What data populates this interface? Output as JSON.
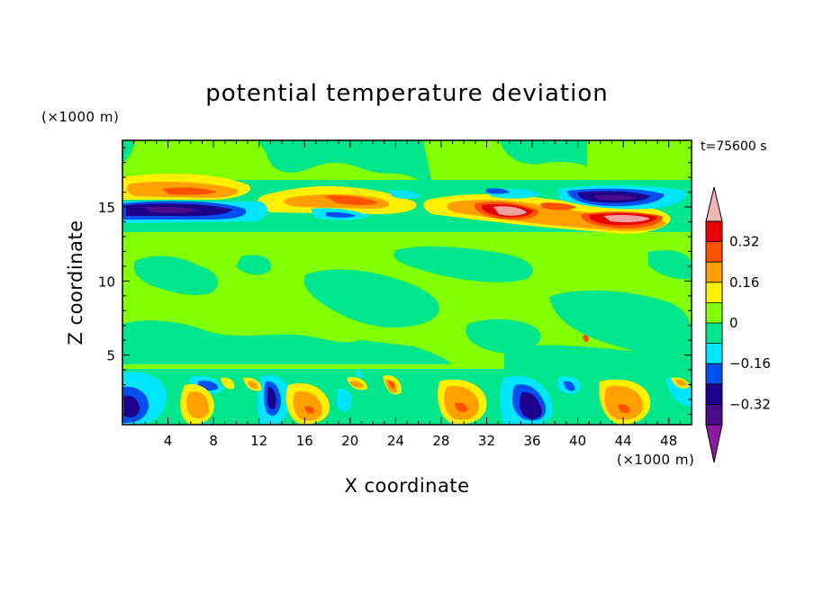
{
  "chart_data": {
    "type": "heatmap",
    "title": "potential temperature deviation",
    "xlabel": "X coordinate",
    "ylabel": "Z coordinate",
    "x_unit_label": "(×1000 m)",
    "y_unit_label": "(×1000 m)",
    "time_label": "t=75600 s",
    "xlim": [
      0,
      50
    ],
    "ylim": [
      0.3,
      19.5
    ],
    "x_ticks": [
      4,
      8,
      12,
      16,
      20,
      24,
      28,
      32,
      36,
      40,
      44,
      48
    ],
    "x_tick_labels": [
      "4",
      "8",
      "12",
      "16",
      "20",
      "24",
      "28",
      "32",
      "36",
      "40",
      "44",
      "48"
    ],
    "y_ticks": [
      5,
      10,
      15
    ],
    "y_tick_labels": [
      "5",
      "10",
      "15"
    ],
    "colorbar": {
      "levels": [
        -0.4,
        -0.32,
        -0.24,
        -0.16,
        -0.08,
        0,
        0.08,
        0.16,
        0.24,
        0.32,
        0.4
      ],
      "labeled_levels": [
        0.32,
        0.16,
        0,
        -0.16,
        -0.32
      ],
      "labels": [
        "0.32",
        "0.16",
        "0",
        "−0.16",
        "−0.32"
      ],
      "colors": [
        "#4b0c8c",
        "#1c008c",
        "#0050f0",
        "#00e6ff",
        "#00e68c",
        "#82ff00",
        "#fff000",
        "#ffa000",
        "#ff5000",
        "#e60000",
        "#f0a0a0",
        "#f5b4b4"
      ],
      "under_color": "#8a1aa0",
      "over_color": "#f5b4b4"
    },
    "background_level": "0 to 0.08",
    "features": [
      {
        "x": 6,
        "z": 16.2,
        "value": 0.2,
        "note": "warm band"
      },
      {
        "x": 5,
        "z": 15,
        "value": -0.4,
        "note": "cold band"
      },
      {
        "x": 20,
        "z": 15.6,
        "value": 0.3
      },
      {
        "x": 34,
        "z": 15,
        "value": 0.45
      },
      {
        "x": 43,
        "z": 14.4,
        "value": 0.45
      },
      {
        "x": 43,
        "z": 15.8,
        "value": -0.35
      },
      {
        "x": 35.5,
        "z": 1.5,
        "value": -0.35
      },
      {
        "x": 6.5,
        "z": 1.5,
        "value": 0.2
      },
      {
        "x": 16,
        "z": 1.5,
        "value": 0.2
      },
      {
        "x": 30,
        "z": 1.8,
        "value": 0.25
      },
      {
        "x": 44,
        "z": 1.8,
        "value": 0.25
      },
      {
        "x": 0.5,
        "z": 1.3,
        "value": -0.3
      }
    ]
  }
}
